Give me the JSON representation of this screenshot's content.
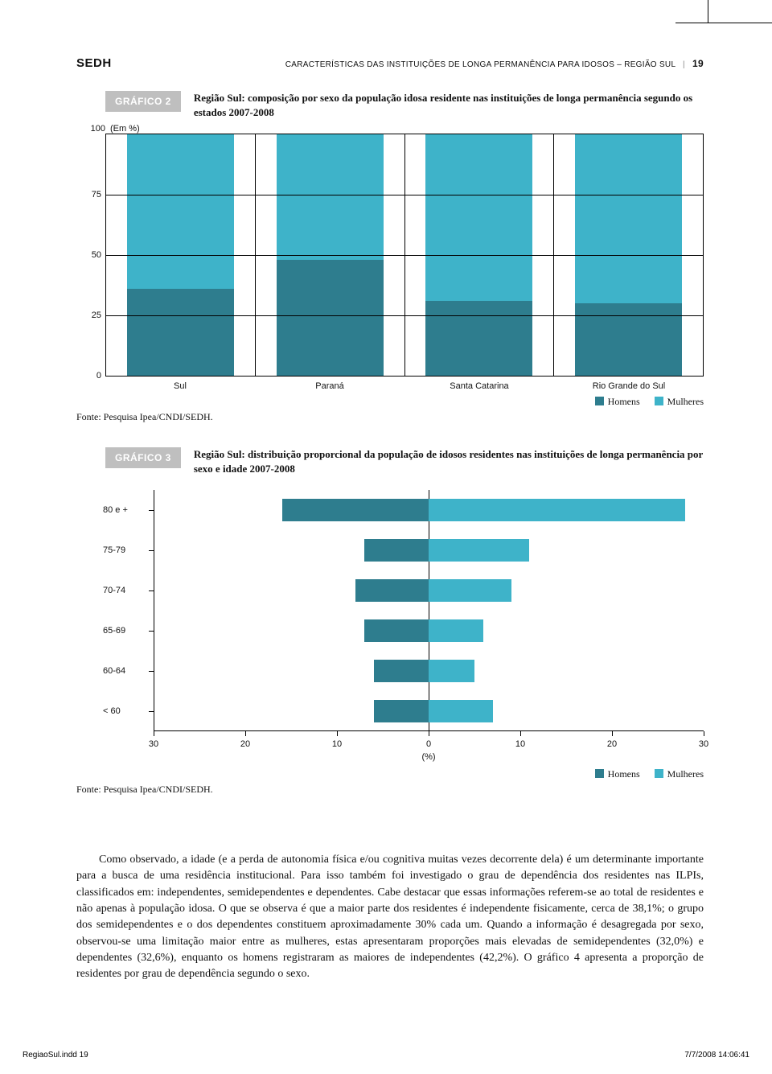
{
  "header": {
    "brand": "SEDH",
    "running": "CARACTERÍSTICAS DAS INSTITUIÇÕES DE LONGA PERMANÊNCIA PARA IDOSOS – REGIÃO SUL",
    "page_number": "19"
  },
  "colors": {
    "light": "#3eb3c9",
    "dark": "#2e7d8e",
    "badge_bg": "#bfbfbf",
    "text": "#111111"
  },
  "chart2": {
    "badge": "GRÁFICO 2",
    "title": "Região Sul: composição por sexo da população idosa residente nas instituições de longa permanência segundo os estados 2007-2008",
    "y_unit": "(Em %)",
    "ylim": [
      0,
      100
    ],
    "ytick_step": 25,
    "yticks": [
      "100",
      "75",
      "50",
      "25",
      "0"
    ],
    "categories": [
      "Sul",
      "Paraná",
      "Santa Catarina",
      "Rio Grande do Sul"
    ],
    "homens": [
      36,
      48,
      31,
      30
    ],
    "mulheres": [
      64,
      52,
      69,
      70
    ],
    "legend": {
      "homens": "Homens",
      "mulheres": "Mulheres"
    },
    "source": "Fonte: Pesquisa Ipea/CNDI/SEDH."
  },
  "chart3": {
    "badge": "GRÁFICO 3",
    "title": "Região Sul: distribuição proporcional da população de idosos residentes nas instituições de longa permanência por sexo e idade 2007-2008",
    "type": "population-pyramid",
    "age_labels": [
      "80 e +",
      "75-79",
      "70-74",
      "65-69",
      "60-64",
      "< 60"
    ],
    "homens": [
      16,
      7,
      8,
      7,
      6,
      6
    ],
    "mulheres": [
      28,
      11,
      9,
      6,
      5,
      7
    ],
    "x_range": 30,
    "x_ticks": [
      "30",
      "20",
      "10",
      "0",
      "10",
      "20",
      "30"
    ],
    "x_unit": "(%)",
    "legend": {
      "homens": "Homens",
      "mulheres": "Mulheres"
    },
    "source": "Fonte: Pesquisa Ipea/CNDI/SEDH."
  },
  "body": {
    "paragraph": "Como observado, a idade (e a perda de autonomia física e/ou cognitiva muitas vezes decorrente dela) é um determinante importante para a busca de uma residência institucional. Para isso também foi investigado o grau de dependência dos residentes nas ILPIs, classificados em: independentes, semidependentes e dependentes. Cabe destacar que essas informações referem-se ao total de residentes e não apenas à população idosa. O que se observa é que a maior parte dos residentes é independente fisicamente, cerca de 38,1%; o grupo dos semidependentes e o dos dependentes constituem aproximadamente 30% cada um. Quando a informação é desagregada por sexo, observou-se uma limitação maior entre as mulheres, estas apresentaram proporções mais elevadas de semidependentes (32,0%) e dependentes (32,6%), enquanto os homens registraram as maiores de independentes (42,2%). O gráfico 4 apresenta a proporção de residentes por grau de dependência segundo o sexo."
  },
  "footer": {
    "left": "RegiaoSul.indd   19",
    "right": "7/7/2008   14:06:41"
  }
}
